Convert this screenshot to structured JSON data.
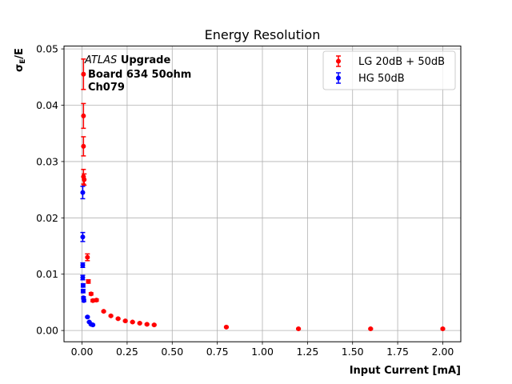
{
  "chart_data": {
    "type": "scatter",
    "title": "Energy Resolution",
    "xlabel": "Input Current [mA]",
    "ylabel_main": "σ",
    "ylabel_sub": "E",
    "ylabel_tail": "/E",
    "xlim": [
      -0.1,
      2.1
    ],
    "ylim": [
      -0.002,
      0.0505
    ],
    "xticks": [
      0.0,
      0.25,
      0.5,
      0.75,
      1.0,
      1.25,
      1.5,
      1.75,
      2.0
    ],
    "xtick_labels": [
      "0.00",
      "0.25",
      "0.50",
      "0.75",
      "1.00",
      "1.25",
      "1.50",
      "1.75",
      "2.00"
    ],
    "yticks": [
      0.0,
      0.01,
      0.02,
      0.03,
      0.04,
      0.05
    ],
    "ytick_labels": [
      "0.00",
      "0.01",
      "0.02",
      "0.03",
      "0.04",
      "0.05"
    ],
    "grid": true,
    "legend_position": "top-right",
    "annotation": {
      "line1_italic": "ATLAS",
      "line1_bold": "Upgrade",
      "line2": "Board 634 50ohm",
      "line3": "Ch079"
    },
    "series": [
      {
        "name": "LG 20dB + 50dB",
        "color": "#ff0000",
        "points": [
          {
            "x": 0.008,
            "y": 0.0455,
            "err": 0.0027
          },
          {
            "x": 0.008,
            "y": 0.0381,
            "err": 0.0022
          },
          {
            "x": 0.008,
            "y": 0.0327,
            "err": 0.0017
          },
          {
            "x": 0.008,
            "y": 0.0273,
            "err": 0.0013
          },
          {
            "x": 0.012,
            "y": 0.0268,
            "err": 0.001
          },
          {
            "x": 0.03,
            "y": 0.013,
            "err": 0.0006
          },
          {
            "x": 0.035,
            "y": 0.0087,
            "err": 0.0003
          },
          {
            "x": 0.05,
            "y": 0.0065,
            "err": 0.0002
          },
          {
            "x": 0.06,
            "y": 0.0053,
            "err": 0.0002
          },
          {
            "x": 0.08,
            "y": 0.0054,
            "err": 0.0002
          },
          {
            "x": 0.12,
            "y": 0.0034,
            "err": 0.0001
          },
          {
            "x": 0.16,
            "y": 0.0026,
            "err": 0.0001
          },
          {
            "x": 0.2,
            "y": 0.0021,
            "err": 0.0001
          },
          {
            "x": 0.24,
            "y": 0.0017,
            "err": 0.0001
          },
          {
            "x": 0.28,
            "y": 0.0015,
            "err": 0.0001
          },
          {
            "x": 0.32,
            "y": 0.0013,
            "err": 0.0001
          },
          {
            "x": 0.36,
            "y": 0.0011,
            "err": 0.0001
          },
          {
            "x": 0.4,
            "y": 0.001,
            "err": 0.0001
          },
          {
            "x": 0.8,
            "y": 0.0006,
            "err": 0.0001
          },
          {
            "x": 1.2,
            "y": 0.0003,
            "err": 0.0001
          },
          {
            "x": 1.6,
            "y": 0.0003,
            "err": 0.0001
          },
          {
            "x": 2.0,
            "y": 0.0003,
            "err": 0.0001
          }
        ]
      },
      {
        "name": "HG 50dB",
        "color": "#0000ff",
        "points": [
          {
            "x": 0.004,
            "y": 0.0245,
            "err": 0.0011
          },
          {
            "x": 0.004,
            "y": 0.0166,
            "err": 0.0008
          },
          {
            "x": 0.004,
            "y": 0.0116,
            "err": 0.0004
          },
          {
            "x": 0.004,
            "y": 0.0094,
            "err": 0.0004
          },
          {
            "x": 0.006,
            "y": 0.008,
            "err": 0.0003
          },
          {
            "x": 0.006,
            "y": 0.007,
            "err": 0.0003
          },
          {
            "x": 0.008,
            "y": 0.0058,
            "err": 0.0002
          },
          {
            "x": 0.01,
            "y": 0.0053,
            "err": 0.0002
          },
          {
            "x": 0.03,
            "y": 0.0024,
            "err": 0.0001
          },
          {
            "x": 0.04,
            "y": 0.0015,
            "err": 0.0001
          },
          {
            "x": 0.05,
            "y": 0.0011,
            "err": 0.0001
          },
          {
            "x": 0.06,
            "y": 0.001,
            "err": 0.0001
          }
        ]
      }
    ]
  }
}
